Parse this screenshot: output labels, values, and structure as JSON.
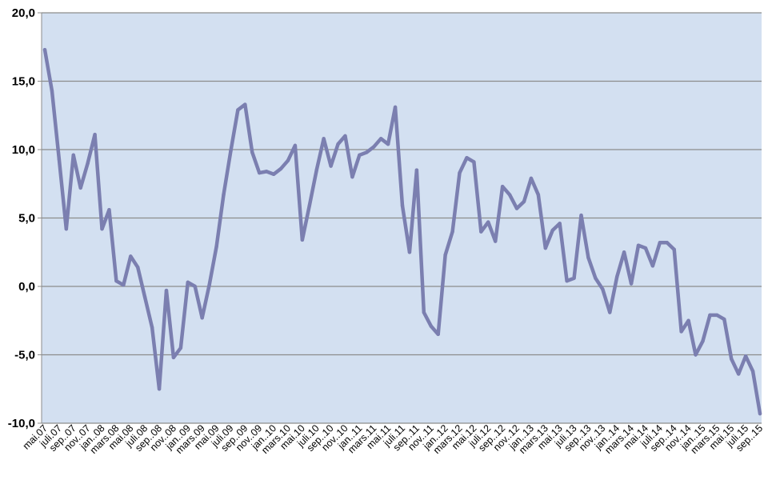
{
  "chart_data": {
    "type": "line",
    "title": "",
    "xlabel": "",
    "ylabel": "",
    "ylim": [
      -10,
      20
    ],
    "yticks": [
      -10,
      -5,
      0,
      5,
      10,
      15,
      20
    ],
    "ytick_labels": [
      "-10,0",
      "-5,0",
      "0,0",
      "5,0",
      "10,0",
      "15,0",
      "20,0"
    ],
    "grid": true,
    "legend": "none",
    "colors": {
      "plot_background": "#d3e0f1",
      "line": "#7b7fb0",
      "grid": "#8c8c8c"
    },
    "x_labels": [
      "mai.07",
      "juli.07",
      "sep..07",
      "nov..07",
      "jan..08",
      "mars.08",
      "mai.08",
      "juli.08",
      "sep..08",
      "nov..08",
      "jan..09",
      "mars.09",
      "mai.09",
      "juli.09",
      "sep..09",
      "nov..09",
      "jan..10",
      "mars.10",
      "mai.10",
      "juli.10",
      "sep..10",
      "nov..10",
      "jan..11",
      "mars.11",
      "mai.11",
      "juli.11",
      "sep..11",
      "nov..11",
      "jan..12",
      "mars.12",
      "mai.12",
      "juli.12",
      "sep..12",
      "nov..12",
      "jan..13",
      "mars.13",
      "mai.13",
      "juli.13",
      "sep..13",
      "nov..13",
      "jan..14",
      "mars.14",
      "mai.14",
      "juli.14",
      "sep..14",
      "nov..14",
      "jan..15",
      "mars.15",
      "mai.15",
      "juli.15",
      "sep..15"
    ],
    "series": [
      {
        "values": [
          17.3,
          14.3,
          9.3,
          4.2,
          9.6,
          7.2,
          9.0,
          11.1,
          4.2,
          5.6,
          0.4,
          0.1,
          2.2,
          1.4,
          -0.8,
          -3.0,
          -7.5,
          -0.3,
          -5.2,
          -4.5,
          0.3,
          0.0,
          -2.3,
          0.1,
          2.9,
          6.7,
          9.9,
          12.9,
          13.3,
          9.8,
          8.3,
          8.4,
          8.2,
          8.6,
          9.2,
          10.3,
          3.4,
          5.9,
          8.5,
          10.8,
          8.8,
          10.4,
          11.0,
          8.0,
          9.6,
          9.8,
          10.2,
          10.8,
          10.4,
          13.1,
          5.9,
          2.5,
          8.5,
          -1.9,
          -2.9,
          -3.5,
          2.3,
          4.0,
          8.3,
          9.4,
          9.1,
          4.0,
          4.7,
          3.3,
          7.3,
          6.7,
          5.7,
          6.2,
          7.9,
          6.7,
          2.8,
          4.1,
          4.6,
          0.4,
          0.6,
          5.2,
          2.1,
          0.6,
          -0.2,
          -1.9,
          0.7,
          2.5,
          0.2,
          3.0,
          2.8,
          1.5,
          3.2,
          3.2,
          2.7,
          -3.3,
          -2.5,
          -5.0,
          -4.0,
          -2.1,
          -2.1,
          -2.4,
          -5.3,
          -6.4,
          -5.1,
          -6.2,
          -9.3
        ]
      }
    ]
  }
}
